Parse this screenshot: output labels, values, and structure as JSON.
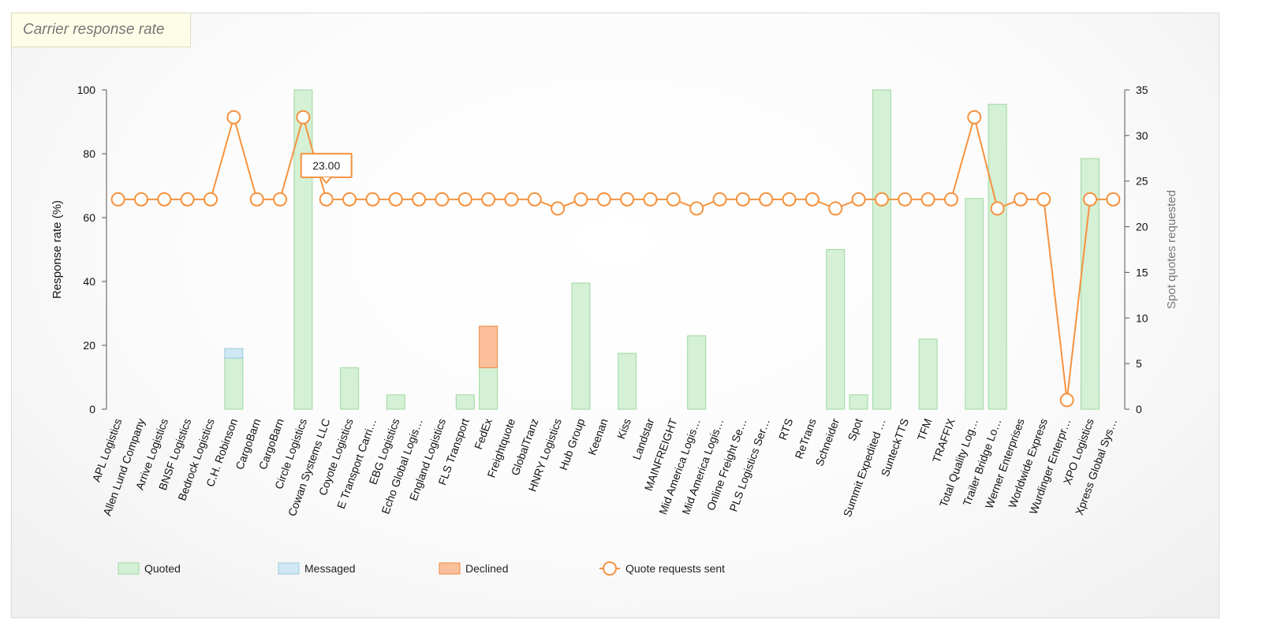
{
  "panel": {
    "title": "Carrier response rate"
  },
  "colors": {
    "quoted_fill": "#d4f0d5",
    "quoted_stroke": "#9fd9a1",
    "messaged_fill": "#cfe8f3",
    "messaged_stroke": "#9ccbe3",
    "declined_fill": "#fbbf9c",
    "declined_stroke": "#f0883e",
    "line": "#f5923e"
  },
  "chart_data": {
    "type": "bar",
    "categories": [
      "APL Logistics",
      "Allen Lund Company",
      "Arrive Logistics",
      "BNSF Logistics",
      "Bedrock Logistics",
      "C.H. Robinson",
      "CargoBarn",
      "CargoBarn",
      "Circle Logistics",
      "Cowan Systems LLC",
      "Coyote Logistics",
      "E Transport Carri…",
      "EBG Logistics",
      "Echo Global Logis…",
      "England Logistics",
      "FLS Transport",
      "FedEx",
      "Freightquote",
      "GlobalTranz",
      "HNRY Logistics",
      "Hub Group",
      "Keenan",
      "Kiss",
      "Landstar",
      "MAINFREIGHT",
      "Mid America Logis…",
      "Mid America Logis…",
      "Online Freight Se…",
      "PLS Logistics Ser…",
      "RTS",
      "ReTrans",
      "Schneider",
      "Spot",
      "Summit Expedited …",
      "SunteckTTS",
      "TFM",
      "TRAFFIX",
      "Total Quality Log…",
      "Trailer Bridge Lo…",
      "Werner Enterprises",
      "Worldwide Express",
      "Wurdinger Enterpr…",
      "XPO Logistics",
      "Xpress Global Sys…"
    ],
    "series": [
      {
        "name": "Quoted",
        "type": "bar",
        "axis": "left",
        "values": [
          0,
          0,
          0,
          0,
          0,
          16,
          0,
          0,
          100,
          0,
          13,
          0,
          4.5,
          0,
          0,
          4.5,
          13,
          0,
          0,
          0,
          39.5,
          0,
          17.5,
          0,
          0,
          23,
          0,
          0,
          0,
          0,
          0,
          50,
          4.5,
          100,
          0,
          22,
          0,
          66,
          95.5,
          0,
          0,
          0,
          78.5,
          0
        ]
      },
      {
        "name": "Messaged",
        "type": "bar",
        "axis": "left",
        "values": [
          0,
          0,
          0,
          0,
          0,
          3,
          0,
          0,
          0,
          0,
          0,
          0,
          0,
          0,
          0,
          0,
          0,
          0,
          0,
          0,
          0,
          0,
          0,
          0,
          0,
          0,
          0,
          0,
          0,
          0,
          0,
          0,
          0,
          0,
          0,
          0,
          0,
          0,
          0,
          0,
          0,
          0,
          0,
          0
        ]
      },
      {
        "name": "Declined",
        "type": "bar",
        "axis": "left",
        "values": [
          0,
          0,
          0,
          0,
          0,
          0,
          0,
          0,
          0,
          0,
          0,
          0,
          0,
          0,
          0,
          0,
          13,
          0,
          0,
          0,
          0,
          0,
          0,
          0,
          0,
          0,
          0,
          0,
          0,
          0,
          0,
          0,
          0,
          0,
          0,
          0,
          0,
          0,
          0,
          0,
          0,
          0,
          0,
          0
        ]
      },
      {
        "name": "Quote requests sent",
        "type": "line",
        "axis": "right",
        "values": [
          23,
          23,
          23,
          23,
          23,
          32,
          23,
          23,
          32,
          23,
          23,
          23,
          23,
          23,
          23,
          23,
          23,
          23,
          23,
          22,
          23,
          23,
          23,
          23,
          23,
          22,
          23,
          23,
          23,
          23,
          23,
          22,
          23,
          23,
          23,
          23,
          23,
          32,
          22,
          23,
          23,
          1,
          23,
          23
        ]
      }
    ],
    "ylabel": "Response rate (%)",
    "ylim": [
      0,
      100
    ],
    "yticks": [
      0,
      20,
      40,
      60,
      80,
      100
    ],
    "y2label": "Spot quotes requested",
    "y2lim": [
      0,
      35
    ],
    "y2ticks": [
      0,
      5,
      10,
      15,
      20,
      25,
      30,
      35
    ],
    "legend_position": "bottom-left",
    "tooltip": {
      "category_index": 9,
      "text": "23.00"
    }
  }
}
